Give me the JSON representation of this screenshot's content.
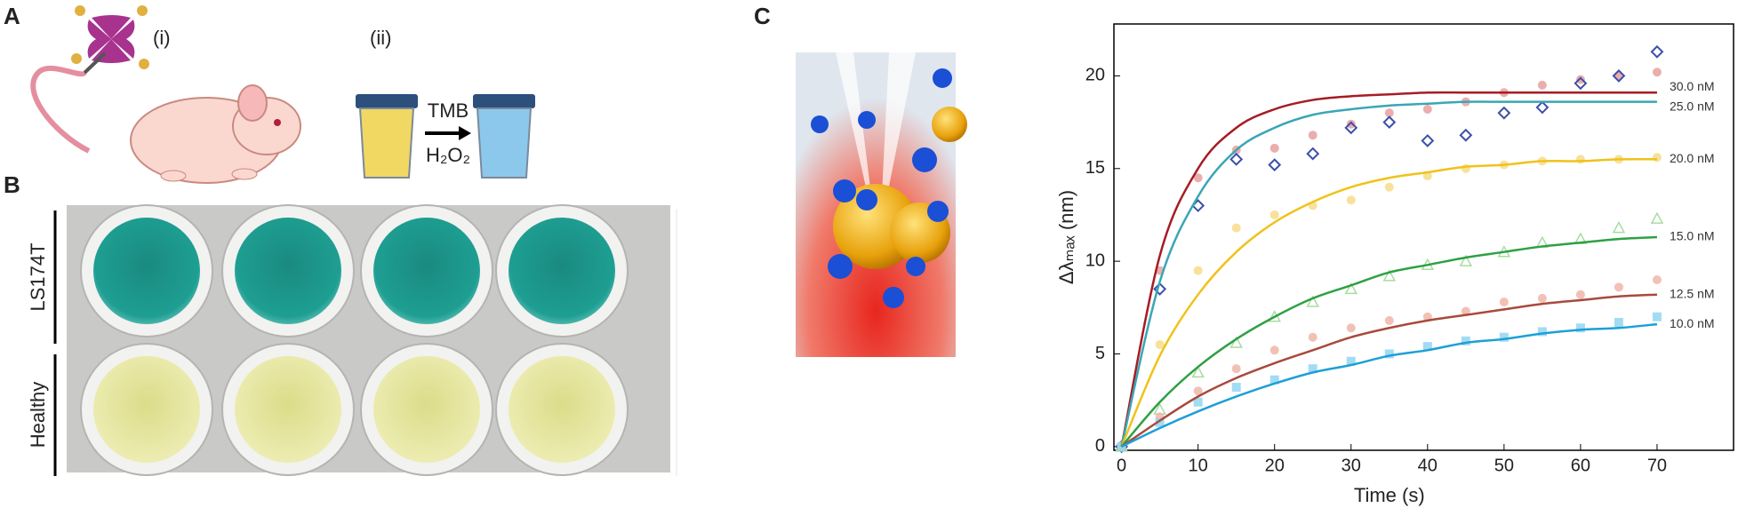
{
  "panels": {
    "A": {
      "label": "A",
      "steps": [
        "(i)",
        "(ii)"
      ],
      "reagents": [
        "TMB",
        "H₂O₂"
      ]
    },
    "B": {
      "label": "B",
      "rows": [
        "LS174T",
        "Healthy"
      ]
    },
    "C": {
      "label": "C"
    }
  },
  "chart_data": {
    "type": "line",
    "x_label": "Time (s)",
    "y_label": "Δλₘₐₓ (nm)",
    "x": [
      0,
      5,
      10,
      15,
      20,
      25,
      30,
      35,
      40,
      45,
      50,
      55,
      60,
      65,
      70
    ],
    "xlim": [
      -1,
      80
    ],
    "xticks": [
      0,
      10,
      20,
      30,
      40,
      50,
      60,
      70
    ],
    "ylim": [
      -0.2,
      22.8
    ],
    "yticks": [
      0,
      5,
      10,
      15,
      20
    ],
    "series": [
      {
        "name": "30.0 nM",
        "color": "#a51c24",
        "marker": "circle",
        "point_color": "#e8a0a0",
        "values": [
          0,
          10.3,
          15.0,
          17.2,
          18.2,
          18.7,
          18.9,
          19.0,
          19.1,
          19.1,
          19.1,
          19.1,
          19.1,
          19.1,
          19.1
        ],
        "points": [
          0,
          9.5,
          14.5,
          16.0,
          16.1,
          16.8,
          17.4,
          18.0,
          18.2,
          18.6,
          19.1,
          19.5,
          19.8,
          20.0,
          20.2
        ]
      },
      {
        "name": "25.0 nM",
        "color": "#3aa6b5",
        "marker": "diamond",
        "point_color": "#3b4fa8",
        "values": [
          0,
          8.9,
          13.5,
          16.0,
          17.2,
          17.9,
          18.2,
          18.4,
          18.5,
          18.6,
          18.6,
          18.6,
          18.6,
          18.6,
          18.6
        ],
        "points": [
          0,
          8.5,
          13.0,
          15.5,
          15.2,
          15.8,
          17.2,
          17.5,
          16.5,
          16.8,
          18.0,
          18.3,
          19.6,
          20.0,
          21.3
        ]
      },
      {
        "name": "20.0 nM",
        "color": "#f0c21a",
        "marker": "circle",
        "point_color": "#f7dc8a",
        "values": [
          0,
          4.9,
          8.2,
          10.5,
          12.1,
          13.2,
          14.0,
          14.5,
          14.8,
          15.1,
          15.2,
          15.4,
          15.4,
          15.5,
          15.5
        ],
        "points": [
          0,
          5.5,
          9.5,
          11.8,
          12.5,
          13.0,
          13.3,
          14.0,
          14.6,
          15.0,
          15.2,
          15.4,
          15.5,
          15.5,
          15.6
        ]
      },
      {
        "name": "15.0 nM",
        "color": "#2ea043",
        "marker": "triangle",
        "point_color": "#a8dca0",
        "values": [
          0,
          2.4,
          4.3,
          5.8,
          7.0,
          8.0,
          8.7,
          9.4,
          9.8,
          10.2,
          10.5,
          10.8,
          11.0,
          11.2,
          11.3
        ],
        "points": [
          0,
          2.0,
          4.0,
          5.6,
          7.0,
          7.8,
          8.5,
          9.2,
          9.8,
          10.0,
          10.5,
          11.0,
          11.2,
          11.8,
          12.3
        ]
      },
      {
        "name": "12.5 nM",
        "color": "#a84a3c",
        "marker": "circle",
        "point_color": "#f0b6a8",
        "values": [
          0,
          1.4,
          2.7,
          3.7,
          4.5,
          5.2,
          5.9,
          6.4,
          6.8,
          7.1,
          7.4,
          7.7,
          7.9,
          8.1,
          8.2
        ],
        "points": [
          0,
          1.6,
          3.0,
          4.2,
          5.2,
          5.9,
          6.4,
          6.8,
          7.0,
          7.3,
          7.8,
          8.0,
          8.2,
          8.6,
          9.0
        ]
      },
      {
        "name": "10.0 nM",
        "color": "#1e9fd6",
        "marker": "square",
        "point_color": "#92d6f2",
        "values": [
          0,
          1.0,
          1.9,
          2.7,
          3.4,
          4.0,
          4.4,
          4.9,
          5.2,
          5.6,
          5.8,
          6.1,
          6.3,
          6.4,
          6.6
        ],
        "points": [
          0,
          1.3,
          2.4,
          3.2,
          3.6,
          4.2,
          4.6,
          5.0,
          5.4,
          5.7,
          5.9,
          6.2,
          6.4,
          6.7,
          7.0
        ]
      }
    ]
  }
}
